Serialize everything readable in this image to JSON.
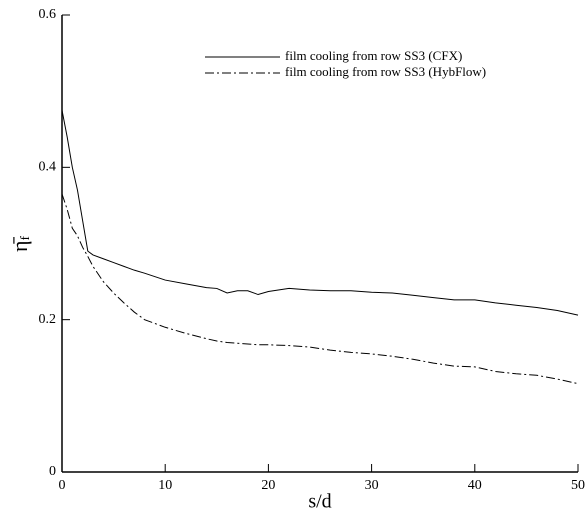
{
  "chart_data": {
    "type": "line",
    "xlabel": "s/d",
    "ylabel": "η̄",
    "ylabel_sub": "f",
    "x": [
      0,
      0.5,
      1,
      1.5,
      2,
      2.5,
      3,
      4,
      5,
      6,
      7,
      8,
      10,
      12,
      14,
      15,
      16,
      17,
      18,
      19,
      20,
      22,
      24,
      26,
      28,
      30,
      32,
      34,
      36,
      38,
      40,
      42,
      44,
      46,
      48,
      50
    ],
    "series": [
      {
        "name": "film cooling from row SS3 (CFX)",
        "color": "#000000",
        "dash": "solid",
        "values": [
          0.475,
          0.44,
          0.4,
          0.37,
          0.33,
          0.29,
          0.285,
          0.28,
          0.275,
          0.27,
          0.265,
          0.261,
          0.252,
          0.247,
          0.242,
          0.241,
          0.235,
          0.238,
          0.238,
          0.233,
          0.237,
          0.241,
          0.239,
          0.238,
          0.238,
          0.236,
          0.235,
          0.232,
          0.229,
          0.226,
          0.226,
          0.222,
          0.219,
          0.216,
          0.212,
          0.206
        ]
      },
      {
        "name": "film cooling from row SS3 (HybFlow)",
        "color": "#000000",
        "dash": "dashdot",
        "values": [
          0.365,
          0.345,
          0.32,
          0.31,
          0.295,
          0.283,
          0.27,
          0.25,
          0.235,
          0.222,
          0.21,
          0.2,
          0.19,
          0.182,
          0.175,
          0.172,
          0.17,
          0.169,
          0.168,
          0.167,
          0.167,
          0.166,
          0.164,
          0.16,
          0.157,
          0.155,
          0.152,
          0.148,
          0.143,
          0.139,
          0.138,
          0.132,
          0.129,
          0.127,
          0.122,
          0.116
        ]
      }
    ],
    "xlim": [
      0,
      50
    ],
    "xticks": [
      0,
      10,
      20,
      30,
      40,
      50
    ],
    "ylim": [
      0,
      0.6
    ],
    "yticks": [
      0,
      0.2,
      0.4,
      0.6
    ],
    "legend": "upper right",
    "grid": false
  }
}
